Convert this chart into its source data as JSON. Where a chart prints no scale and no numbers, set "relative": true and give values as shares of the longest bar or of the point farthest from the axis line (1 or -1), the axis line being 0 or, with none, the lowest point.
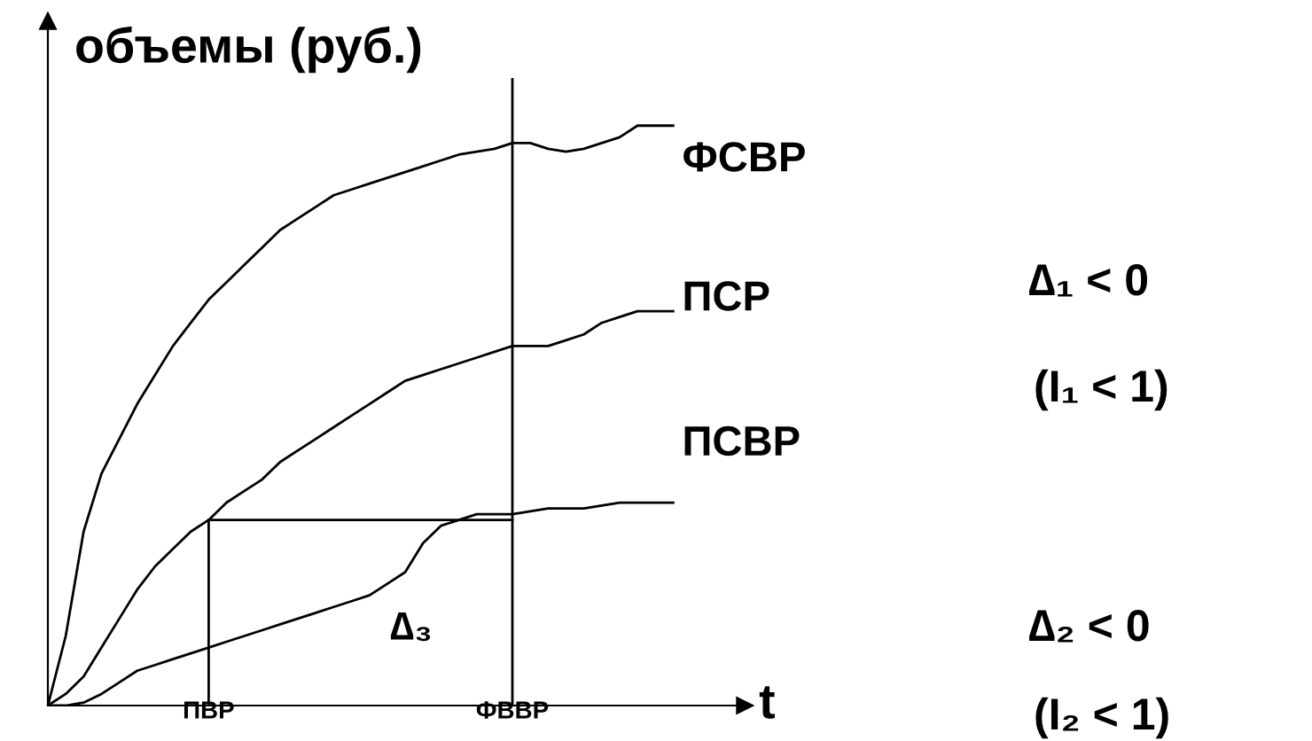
{
  "chart_data": {
    "type": "line",
    "relative": true,
    "title": "объемы (руб.)",
    "xlabel": "t",
    "categories": [
      null,
      null,
      null,
      null,
      null,
      null,
      null,
      null,
      null,
      "ПВР",
      null,
      null,
      null,
      null,
      null,
      null,
      null,
      null,
      null,
      null,
      null,
      null,
      null,
      null,
      null,
      null,
      "ФВВР",
      null,
      null,
      null,
      null,
      null,
      null,
      null,
      null,
      null
    ],
    "series": [
      {
        "name": "ФСВР",
        "color": "#000000",
        "values": [
          0,
          0.12,
          0.3,
          0.4,
          0.46,
          0.52,
          0.57,
          0.62,
          0.66,
          0.7,
          0.73,
          0.76,
          0.79,
          0.82,
          0.84,
          0.86,
          0.88,
          0.89,
          0.9,
          0.91,
          0.92,
          0.93,
          0.94,
          0.95,
          0.955,
          0.96,
          0.97,
          0.97,
          0.96,
          0.955,
          0.96,
          0.97,
          0.98,
          1,
          1,
          1
        ]
      },
      {
        "name": "ПСР",
        "color": "#000000",
        "values": [
          0,
          0.02,
          0.05,
          0.1,
          0.15,
          0.2,
          0.24,
          0.27,
          0.3,
          0.32,
          0.35,
          0.37,
          0.39,
          0.42,
          0.44,
          0.46,
          0.48,
          0.5,
          0.52,
          0.54,
          0.56,
          0.57,
          0.58,
          0.59,
          0.6,
          0.61,
          0.62,
          0.62,
          0.62,
          0.63,
          0.64,
          0.66,
          0.67,
          0.68,
          0.68,
          0.68
        ]
      },
      {
        "name": "ПСВР",
        "color": "#000000",
        "values": [
          0,
          0,
          0.005,
          0.02,
          0.04,
          0.06,
          0.07,
          0.08,
          0.09,
          0.1,
          0.11,
          0.12,
          0.13,
          0.14,
          0.15,
          0.16,
          0.17,
          0.18,
          0.19,
          0.21,
          0.23,
          0.28,
          0.31,
          0.32,
          0.33,
          0.33,
          0.33,
          0.335,
          0.34,
          0.34,
          0.34,
          0.345,
          0.35,
          0.35,
          0.35,
          0.35
        ]
      }
    ],
    "ref_lines": [
      {
        "axis": "x",
        "value": "ПВР",
        "color": "#000000"
      },
      {
        "axis": "x",
        "value": "ФВВР",
        "color": "#000000"
      },
      {
        "axis": "y",
        "value": 0.32,
        "color": "#000000"
      }
    ],
    "annotations": [
      "∆₁ < 0",
      "(I₁ < 1)",
      "∆₂ < 0",
      "(I₂ < 1)",
      "∆₃"
    ],
    "grid": false,
    "marker": "none",
    "line_style": "solid"
  }
}
